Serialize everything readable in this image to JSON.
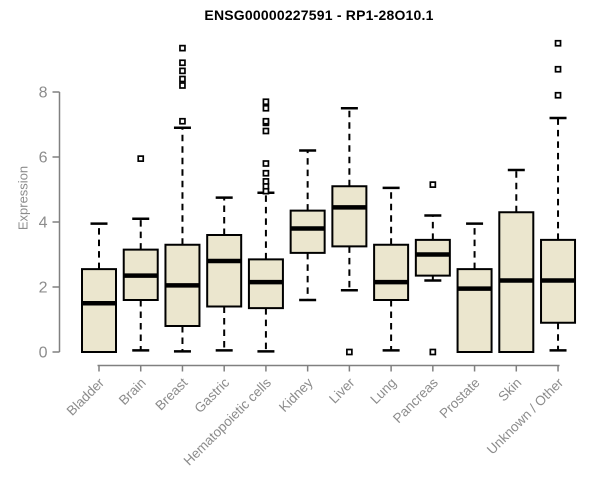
{
  "title": "ENSG00000227591 - RP1-28O10.1",
  "colors": {
    "box_fill": "#EBE6CE",
    "box_border": "#000000",
    "median": "#000000",
    "whisker": "#000000",
    "outlier": "#000000",
    "axis_line": "#808080",
    "tick_label": "#8c8c8c",
    "title_color": "#000000",
    "background": "#ffffff"
  },
  "chart_data": {
    "type": "boxplot",
    "title": "ENSG00000227591 - RP1-28O10.1",
    "xlabel": "",
    "ylabel": "Expression",
    "ylim": [
      0,
      9.6
    ],
    "yticks": [
      0,
      2,
      4,
      6,
      8
    ],
    "grid": false,
    "legend": false,
    "categories": [
      "Bladder",
      "Brain",
      "Breast",
      "Gastric",
      "Hematopoietic cells",
      "Kidney",
      "Liver",
      "Lung",
      "Pancreas",
      "Prostate",
      "Skin",
      "Unknown / Other"
    ],
    "boxes": [
      {
        "category": "Bladder",
        "whisker_low": 0.0,
        "q1": 0.0,
        "median": 1.5,
        "q3": 2.55,
        "whisker_high": 3.95,
        "outliers": []
      },
      {
        "category": "Brain",
        "whisker_low": 0.05,
        "q1": 1.6,
        "median": 2.35,
        "q3": 3.15,
        "whisker_high": 4.1,
        "outliers": [
          5.95
        ]
      },
      {
        "category": "Breast",
        "whisker_low": 0.02,
        "q1": 0.8,
        "median": 2.05,
        "q3": 3.3,
        "whisker_high": 6.9,
        "outliers": [
          7.1,
          8.2,
          8.4,
          8.65,
          8.9,
          9.35
        ]
      },
      {
        "category": "Gastric",
        "whisker_low": 0.05,
        "q1": 1.4,
        "median": 2.8,
        "q3": 3.6,
        "whisker_high": 4.75,
        "outliers": []
      },
      {
        "category": "Hematopoietic cells",
        "whisker_low": 0.02,
        "q1": 1.35,
        "median": 2.15,
        "q3": 2.85,
        "whisker_high": 4.9,
        "outliers": [
          4.95,
          5.1,
          5.25,
          5.5,
          5.8,
          6.8,
          7.05,
          7.1,
          7.5,
          7.7
        ]
      },
      {
        "category": "Kidney",
        "whisker_low": 1.6,
        "q1": 3.05,
        "median": 3.8,
        "q3": 4.35,
        "whisker_high": 6.2,
        "outliers": []
      },
      {
        "category": "Liver",
        "whisker_low": 1.9,
        "q1": 3.25,
        "median": 4.45,
        "q3": 5.1,
        "whisker_high": 7.5,
        "outliers": [
          0.0
        ]
      },
      {
        "category": "Lung",
        "whisker_low": 0.05,
        "q1": 1.6,
        "median": 2.15,
        "q3": 3.3,
        "whisker_high": 5.05,
        "outliers": []
      },
      {
        "category": "Pancreas",
        "whisker_low": 2.2,
        "q1": 2.35,
        "median": 3.0,
        "q3": 3.45,
        "whisker_high": 4.2,
        "outliers": [
          5.15,
          0.0
        ]
      },
      {
        "category": "Prostate",
        "whisker_low": 0.0,
        "q1": 0.0,
        "median": 1.95,
        "q3": 2.55,
        "whisker_high": 3.95,
        "outliers": []
      },
      {
        "category": "Skin",
        "whisker_low": 0.0,
        "q1": 0.0,
        "median": 2.2,
        "q3": 4.3,
        "whisker_high": 5.6,
        "outliers": []
      },
      {
        "category": "Unknown / Other",
        "whisker_low": 0.05,
        "q1": 0.9,
        "median": 2.2,
        "q3": 3.45,
        "whisker_high": 7.2,
        "outliers": [
          7.9,
          8.7,
          9.5
        ]
      }
    ]
  }
}
